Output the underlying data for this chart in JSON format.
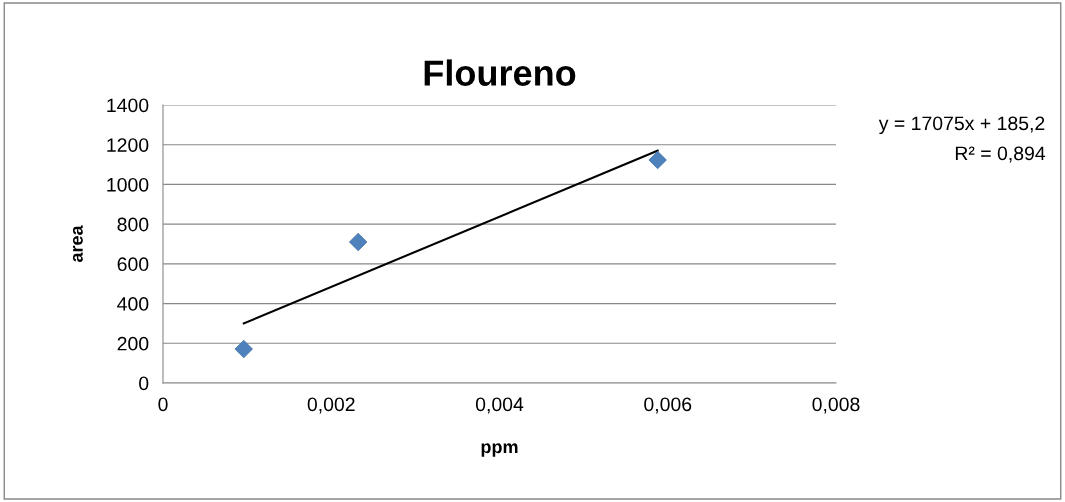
{
  "chart_data": {
    "type": "scatter",
    "title": "Floureno",
    "xlabel": "ppm",
    "ylabel": "area",
    "series": [
      {
        "color": "#4f81bd",
        "marker": "diamond",
        "x": [
          0.00096,
          0.00232,
          0.00588
        ],
        "values": [
          171,
          710,
          1123
        ]
      },
      {
        "type": "line",
        "color": "#000000",
        "marker": "none",
        "x": [
          0.00096,
          0.00588
        ],
        "values": [
          300,
          1170
        ]
      }
    ],
    "xlim": [
      0,
      0.008
    ],
    "xticks": [
      0,
      {
        "value": 0.002,
        "label": "0,002"
      },
      {
        "value": 0.004,
        "label": "0,004"
      },
      {
        "value": 0.006,
        "label": "0,006"
      },
      {
        "value": 0.008,
        "label": "0,008"
      }
    ],
    "ylim": [
      0,
      1400
    ],
    "yticks": [
      0,
      200,
      400,
      600,
      800,
      1000,
      1200,
      1400
    ],
    "grid": "y",
    "legend": false,
    "annotations": [
      "y = 17075x + 185,2",
      "R² = 0,894"
    ]
  }
}
